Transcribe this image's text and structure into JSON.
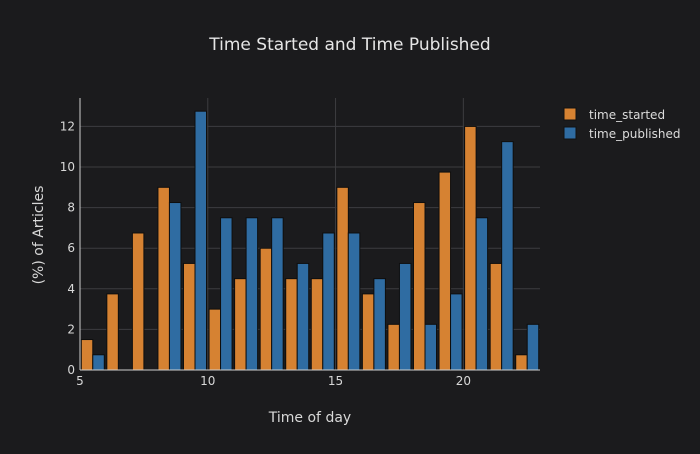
{
  "chart_data": {
    "type": "bar",
    "title": "Time Started and Time Published",
    "xlabel": "Time of day",
    "ylabel": "(%) of Articles",
    "x": [
      5,
      6,
      7,
      8,
      9,
      10,
      11,
      12,
      13,
      14,
      15,
      16,
      17,
      18,
      19,
      20,
      21,
      22
    ],
    "xlim": [
      5,
      23
    ],
    "ylim": [
      0,
      13.4
    ],
    "x_ticks": [
      5,
      10,
      15,
      20
    ],
    "y_ticks": [
      0,
      2,
      4,
      6,
      8,
      10,
      12
    ],
    "grid": true,
    "legend_position": "top-right",
    "series": [
      {
        "name": "time_started",
        "color": "#d68232",
        "values": [
          1.5,
          3.75,
          6.75,
          9.0,
          5.25,
          3.0,
          4.5,
          6.0,
          4.5,
          4.5,
          9.0,
          3.75,
          2.25,
          8.25,
          9.75,
          12.0,
          5.25,
          0.75
        ]
      },
      {
        "name": "time_published",
        "color": "#2f6ca2",
        "values": [
          0.75,
          0.0,
          0.0,
          8.25,
          12.75,
          7.5,
          7.5,
          7.5,
          5.25,
          6.75,
          6.75,
          4.5,
          5.25,
          2.25,
          3.75,
          7.5,
          11.25,
          2.25
        ]
      }
    ]
  }
}
